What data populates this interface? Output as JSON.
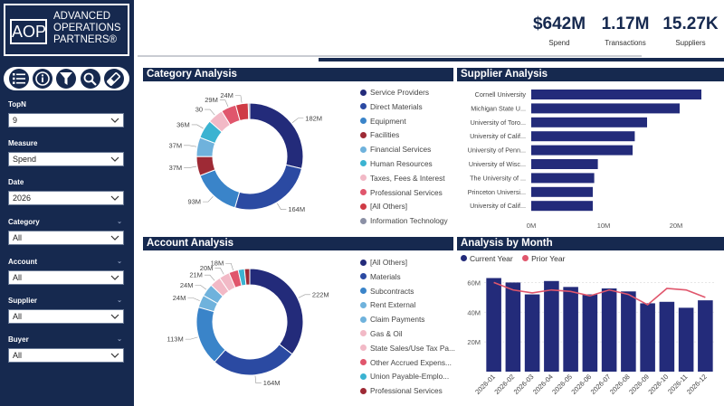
{
  "brand": {
    "mark": "AOP",
    "line1": "ADVANCED",
    "line2": "OPERATIONS",
    "line3": "PARTNERS®"
  },
  "toolbar": [
    "list-icon",
    "info-icon",
    "filter-icon",
    "search-icon",
    "eraser-icon"
  ],
  "slicers": [
    {
      "label": "TopN",
      "value": "9"
    },
    {
      "label": "Measure",
      "value": "Spend"
    },
    {
      "label": "Date",
      "value": "2026"
    },
    {
      "label": "Category",
      "value": "All"
    },
    {
      "label": "Account",
      "value": "All"
    },
    {
      "label": "Supplier",
      "value": "All"
    },
    {
      "label": "Buyer",
      "value": "All"
    }
  ],
  "kpis": [
    {
      "value": "$642M",
      "label": "Spend"
    },
    {
      "value": "1.17M",
      "label": "Transactions"
    },
    {
      "value": "15.27K",
      "label": "Suppliers"
    }
  ],
  "category": {
    "title": "Category Analysis",
    "legend": [
      "Service Providers",
      "Direct Materials",
      "Equipment",
      "Facilities",
      "Financial Services",
      "Human Resources",
      "Taxes, Fees & Interest",
      "Professional Services",
      "[All Others]",
      "Information Technology"
    ]
  },
  "supplier": {
    "title": "Supplier Analysis"
  },
  "account": {
    "title": "Account Analysis",
    "legend": [
      "[All Others]",
      "Materials",
      "Subcontracts",
      "Rent External",
      "Claim Payments",
      "Gas & Oil",
      "State Sales/Use Tax Pa...",
      "Other Accrued Expens...",
      "Union Payable-Emplo...",
      "Professional Services"
    ]
  },
  "month": {
    "title": "Analysis by Month",
    "legend": [
      "Current Year",
      "Prior Year"
    ]
  },
  "colors": {
    "navy": "#16294f",
    "bar": "#232b7a",
    "darkblue": "#2b4aa2",
    "blue": "#3a84c9",
    "crimson": "#9e2a35",
    "sky": "#6fb2dc",
    "teal": "#3bb3d1",
    "lightpink": "#f2b9c6",
    "pink": "#e0566c",
    "red": "#cf3b45",
    "gray": "#8b90a5",
    "prior": "#e0566c"
  },
  "chart_data": [
    {
      "type": "pie",
      "name": "Category Analysis",
      "labels": [
        "Service Providers",
        "Direct Materials",
        "Equipment",
        "Facilities",
        "Financial Services",
        "Human Resources",
        "Taxes, Fees & Interest",
        "Professional Services",
        "[All Others]",
        "Information Technology"
      ],
      "values": [
        182,
        164,
        93,
        37,
        37,
        36,
        30,
        29,
        24,
        3
      ],
      "data_labels": [
        "182M",
        "164M",
        "93M",
        "37M",
        "37M",
        "36M",
        "30",
        "29M",
        "24M",
        ""
      ]
    },
    {
      "type": "bar",
      "name": "Supplier Analysis",
      "orientation": "horizontal",
      "categories": [
        "Cornell University",
        "Michigan State U...",
        "University of Toro...",
        "University of Calif...",
        "University of Penn...",
        "University of Wisc...",
        "The University of ...",
        "Princeton Universi...",
        "University of Calif..."
      ],
      "values": [
        23.5,
        20.5,
        16,
        14.3,
        14,
        9.2,
        8.7,
        8.5,
        8.5
      ],
      "xlim": [
        0,
        25
      ],
      "xticks": [
        "0M",
        "10M",
        "20M"
      ]
    },
    {
      "type": "pie",
      "name": "Account Analysis",
      "labels": [
        "[All Others]",
        "Materials",
        "Subcontracts",
        "Rent External",
        "Claim Payments",
        "Gas & Oil",
        "State Sales/Use Tax Pa...",
        "Other Accrued Expens...",
        "Union Payable-Emplo...",
        "Professional Services"
      ],
      "values": [
        222,
        164,
        113,
        24,
        24,
        21,
        20,
        18,
        12,
        10
      ],
      "data_labels": [
        "222M",
        "164M",
        "113M",
        "24M",
        "24M",
        "21M",
        "20M",
        "18M",
        "",
        ""
      ]
    },
    {
      "type": "bar",
      "name": "Analysis by Month",
      "categories": [
        "2026-01",
        "2026-02",
        "2026-03",
        "2026-04",
        "2026-05",
        "2026-06",
        "2026-07",
        "2026-08",
        "2026-09",
        "2026-10",
        "2026-11",
        "2026-12"
      ],
      "series": [
        {
          "name": "Current Year",
          "type": "bar",
          "values": [
            63,
            60,
            52,
            61,
            57,
            52,
            56,
            54,
            46,
            47,
            43,
            48
          ]
        },
        {
          "name": "Prior Year",
          "type": "line",
          "values": [
            60,
            55,
            53,
            55,
            54,
            51,
            55,
            52,
            45,
            56,
            55,
            50
          ]
        }
      ],
      "ylim": [
        0,
        70
      ],
      "yticks": [
        "20M",
        "40M",
        "60M"
      ]
    }
  ]
}
